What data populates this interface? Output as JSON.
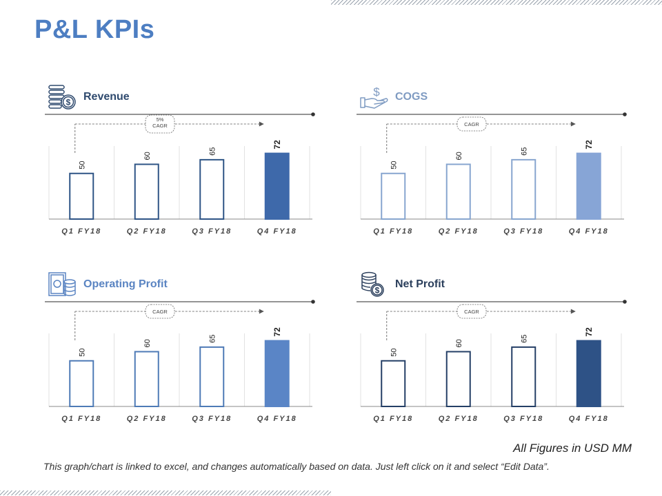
{
  "title": "P&L KPIs",
  "footnote_units": "All Figures in USD MM",
  "footnote_note": "This graph/chart is linked to excel, and changes automatically based on data. Just left click on it and select “Edit Data”.",
  "chart_data": [
    {
      "id": "revenue",
      "type": "bar",
      "title": "Revenue",
      "icon": "money-stack-icon",
      "categories": [
        "Q1 FY18",
        "Q2 FY18",
        "Q3 FY18",
        "Q4 FY18"
      ],
      "values": [
        50,
        60,
        65,
        72
      ],
      "ylim": [
        0,
        80
      ],
      "cagr_label": [
        "5%",
        "CAGR"
      ],
      "title_color": "#2f4a6e",
      "line_color": "#2e5485",
      "fill_color": "#3e69aa"
    },
    {
      "id": "cogs",
      "type": "bar",
      "title": "COGS",
      "icon": "hand-dollar-icon",
      "categories": [
        "Q1 FY18",
        "Q2 FY18",
        "Q3 FY18",
        "Q4 FY18"
      ],
      "values": [
        50,
        60,
        65,
        72
      ],
      "ylim": [
        0,
        80
      ],
      "cagr_label": [
        "CAGR"
      ],
      "title_color": "#7f9bc2",
      "line_color": "#87a5cf",
      "fill_color": "#87a5d6"
    },
    {
      "id": "operating-profit",
      "type": "bar",
      "title": "Operating Profit",
      "icon": "cash-coins-icon",
      "categories": [
        "Q1 FY18",
        "Q2 FY18",
        "Q3 FY18",
        "Q4 FY18"
      ],
      "values": [
        50,
        60,
        65,
        72
      ],
      "ylim": [
        0,
        80
      ],
      "cagr_label": [
        "CAGR"
      ],
      "title_color": "#5a84c2",
      "line_color": "#4e7ab6",
      "fill_color": "#5a85c6"
    },
    {
      "id": "net-profit",
      "type": "bar",
      "title": "Net Profit",
      "icon": "coin-stack-dollar-icon",
      "categories": [
        "Q1 FY18",
        "Q2 FY18",
        "Q3 FY18",
        "Q4 FY18"
      ],
      "values": [
        50,
        60,
        65,
        72
      ],
      "ylim": [
        0,
        80
      ],
      "cagr_label": [
        "CAGR"
      ],
      "title_color": "#2b3f5c",
      "line_color": "#243f66",
      "fill_color": "#2e5286"
    }
  ]
}
